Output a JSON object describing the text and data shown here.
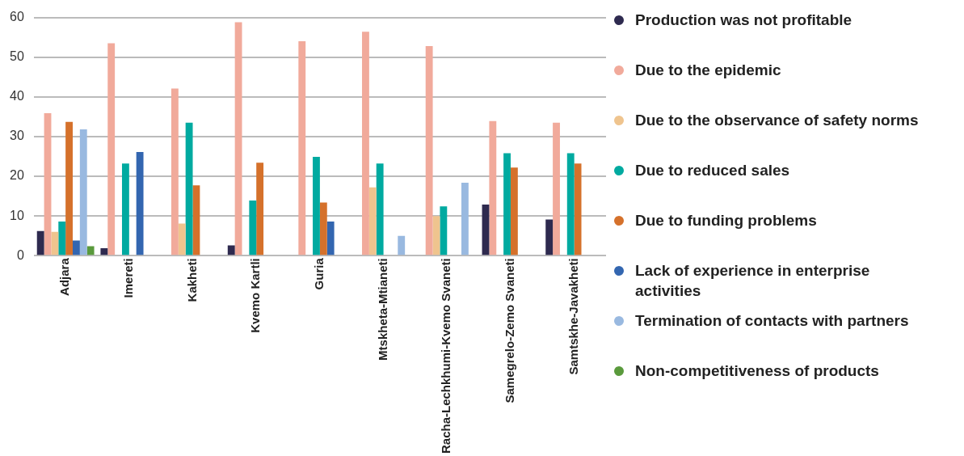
{
  "chart_data": {
    "type": "bar",
    "categories": [
      "Adjara",
      "Imereti",
      "Kakheti",
      "Kvemo Kartli",
      "Guria",
      "Mtskheta-Mtianeti",
      "Racha-Lechkhumi-Kvemo Svaneti",
      "Samegrelo-Zemo Svaneti",
      "Samtskhe-Javakheti"
    ],
    "series": [
      {
        "name": "Production was not profitable",
        "color": "#2e2a4f",
        "values": [
          6.2,
          1.9,
          null,
          2.6,
          null,
          null,
          null,
          12.9,
          9.1
        ]
      },
      {
        "name": "Due to the epidemic",
        "color": "#f1aa9b",
        "values": [
          35.9,
          53.5,
          42.1,
          58.8,
          54.0,
          56.4,
          52.8,
          33.9,
          33.5
        ]
      },
      {
        "name": "Due to the observance of safety norms",
        "color": "#efc48e",
        "values": [
          6.0,
          null,
          8.1,
          null,
          null,
          17.2,
          10.0,
          null,
          null
        ]
      },
      {
        "name": "Due to reduced sales",
        "color": "#00aaa0",
        "values": [
          8.6,
          23.2,
          33.5,
          13.9,
          24.9,
          23.2,
          12.4,
          25.8,
          25.8
        ]
      },
      {
        "name": "Due to funding problems",
        "color": "#d5712b",
        "values": [
          33.7,
          null,
          17.7,
          23.4,
          13.4,
          null,
          null,
          22.2,
          23.2
        ]
      },
      {
        "name": "Lack of experience in enterprise activities",
        "color": "#3366b0",
        "values": [
          3.8,
          26.1,
          null,
          null,
          8.6,
          null,
          null,
          null,
          null
        ]
      },
      {
        "name": "Termination of contacts with partners",
        "color": "#99b9e0",
        "values": [
          31.8,
          null,
          null,
          null,
          null,
          5.0,
          18.4,
          null,
          null
        ]
      },
      {
        "name": "Non-competitiveness of products",
        "color": "#5a9a3c",
        "values": [
          2.4,
          null,
          null,
          null,
          null,
          null,
          null,
          null,
          null
        ]
      }
    ],
    "ylim": [
      0,
      60
    ],
    "yticks": [
      0,
      10,
      20,
      30,
      40,
      50,
      60
    ],
    "grid": "y",
    "legend": "right"
  }
}
